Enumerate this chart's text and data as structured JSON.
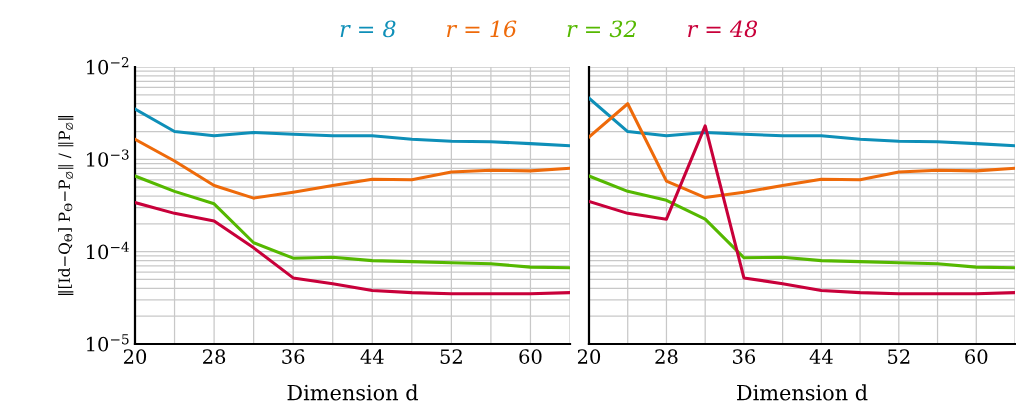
{
  "chart_data": [
    {
      "type": "line",
      "xlabel": "Dimension d",
      "ylabel": "‖[Id−Q$_{Θ}$] P$_{Θ}$−P$_{∅}$‖ / ‖P$_{∅}$‖",
      "log": "y",
      "grid": true,
      "legend": "top",
      "tick_labels": "xy",
      "x": [
        20,
        24,
        28,
        32,
        36,
        40,
        44,
        48,
        52,
        56,
        60,
        64
      ],
      "xlim": [
        20,
        64
      ],
      "xticks": [
        20,
        {
          "value": 24,
          "label": null
        },
        28,
        {
          "value": 32,
          "label": null
        },
        36,
        {
          "value": 40,
          "label": null
        },
        44,
        {
          "value": 48,
          "label": null
        },
        52,
        {
          "value": 56,
          "label": null
        },
        60,
        {
          "value": 64,
          "label": null
        }
      ],
      "ylim": [
        1e-05,
        0.01
      ],
      "yticks": [
        {
          "value": 1e-05,
          "label": "10$^{−5}$"
        },
        {
          "value": 0.0001,
          "label": "10$^{−4}$"
        },
        {
          "value": 0.001,
          "label": "10$^{−3}$"
        },
        {
          "value": 0.01,
          "label": "10$^{−2}$"
        }
      ],
      "series": [
        {
          "name": "r = 8",
          "color": "#0e8fb8",
          "values": [
            0.0035,
            0.002,
            0.0018,
            0.00195,
            0.00187,
            0.0018,
            0.0018,
            0.00165,
            0.00157,
            0.00155,
            0.00148,
            0.0014
          ]
        },
        {
          "name": "r = 16",
          "color": "#ee6a0a",
          "values": [
            0.00165,
            0.00096,
            0.00052,
            0.00038,
            0.00044,
            0.00052,
            0.00061,
            0.0006,
            0.00073,
            0.00076,
            0.00075,
            0.0008
          ]
        },
        {
          "name": "r = 32",
          "color": "#55b800",
          "values": [
            0.00066,
            0.00045,
            0.00033,
            0.000125,
            8.5e-05,
            8.7e-05,
            8e-05,
            7.8e-05,
            7.6e-05,
            7.4e-05,
            6.8e-05,
            6.7e-05
          ]
        },
        {
          "name": "r = 48",
          "color": "#c8003a",
          "values": [
            0.00034,
            0.00026,
            0.000215,
            0.00011,
            5.2e-05,
            4.5e-05,
            3.8e-05,
            3.6e-05,
            3.5e-05,
            3.5e-05,
            3.5e-05,
            3.6e-05
          ]
        }
      ]
    },
    {
      "type": "line",
      "xlabel": "Dimension d",
      "log": "y",
      "grid": true,
      "tick_labels": "x",
      "x": [
        20,
        24,
        28,
        32,
        36,
        40,
        44,
        48,
        52,
        56,
        60,
        64
      ],
      "xlim": [
        20,
        64
      ],
      "xticks": [
        20,
        {
          "value": 24,
          "label": null
        },
        28,
        {
          "value": 32,
          "label": null
        },
        36,
        {
          "value": 40,
          "label": null
        },
        44,
        {
          "value": 48,
          "label": null
        },
        52,
        {
          "value": 56,
          "label": null
        },
        60,
        {
          "value": 64,
          "label": null
        }
      ],
      "ylim": [
        1e-05,
        0.01
      ],
      "yticks": [
        {
          "value": 1e-05,
          "label": null
        },
        {
          "value": 0.0001,
          "label": null
        },
        {
          "value": 0.001,
          "label": null
        },
        {
          "value": 0.01,
          "label": null
        }
      ],
      "series": [
        {
          "color": "#0e8fb8",
          "values": [
            0.0046,
            0.002,
            0.0018,
            0.00195,
            0.00187,
            0.0018,
            0.0018,
            0.00165,
            0.00157,
            0.00155,
            0.00148,
            0.0014
          ]
        },
        {
          "color": "#ee6a0a",
          "values": [
            0.00175,
            0.004,
            0.00058,
            0.000385,
            0.00044,
            0.00052,
            0.00061,
            0.0006,
            0.00073,
            0.00076,
            0.00075,
            0.0008
          ]
        },
        {
          "color": "#55b800",
          "values": [
            0.00066,
            0.00045,
            0.00036,
            0.000225,
            8.6e-05,
            8.7e-05,
            8e-05,
            7.8e-05,
            7.6e-05,
            7.4e-05,
            6.8e-05,
            6.7e-05
          ]
        },
        {
          "color": "#c8003a",
          "values": [
            0.00035,
            0.00026,
            0.000225,
            0.0023,
            5.2e-05,
            4.5e-05,
            3.8e-05,
            3.6e-05,
            3.5e-05,
            3.5e-05,
            3.5e-05,
            3.6e-05
          ]
        }
      ]
    }
  ]
}
